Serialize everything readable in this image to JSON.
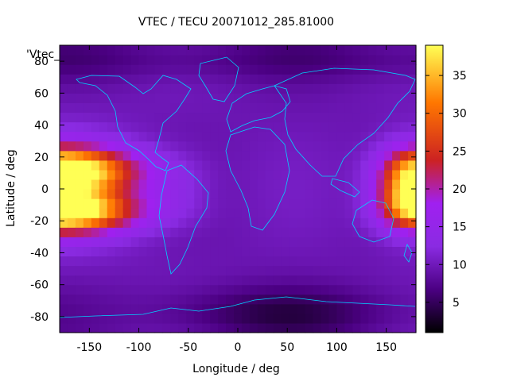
{
  "chart_data": {
    "type": "heatmap",
    "title": "VTEC / TECU 20071012_285.81000",
    "xlabel": "Longitude / deg",
    "ylabel": "Latitude / deg",
    "xlim": [
      -180,
      180
    ],
    "ylim": [
      -90,
      90
    ],
    "xticks": [
      -150,
      -100,
      -50,
      0,
      50,
      100,
      150
    ],
    "yticks": [
      -80,
      -60,
      -40,
      -20,
      0,
      20,
      40,
      60,
      80
    ],
    "colorbar": {
      "range": [
        1,
        39
      ],
      "ticks": [
        5,
        10,
        15,
        20,
        25,
        30,
        35
      ],
      "palette": [
        "#000000",
        "#4b0082",
        "#8a2be2",
        "#a020f0",
        "#cc2222",
        "#ff7700",
        "#ffff55"
      ]
    },
    "legend": {
      "key": "'Vtec_",
      "position": "top-left"
    },
    "grid": false,
    "features": [
      {
        "name": "pacific-west-anomaly",
        "lon_range": [
          -180,
          -100
        ],
        "lat_range": [
          -30,
          35
        ],
        "peak_lat": 12,
        "peak_value": 38
      },
      {
        "name": "pacific-south-anomaly",
        "lon_range": [
          -180,
          -100
        ],
        "lat_range": [
          -30,
          35
        ],
        "peak_lat": -14,
        "peak_value": 36
      },
      {
        "name": "east-edge-anomaly",
        "lon_range": [
          140,
          180
        ],
        "lat_range": [
          -30,
          35
        ],
        "peak_value": 35
      },
      {
        "name": "background",
        "value_range": [
          8,
          13
        ]
      },
      {
        "name": "polar-minima",
        "lat_range": [
          -90,
          -60
        ],
        "value_range": [
          2,
          6
        ]
      }
    ]
  },
  "colors": {
    "coastline": "#00d4ff",
    "background": "#ffffff"
  }
}
